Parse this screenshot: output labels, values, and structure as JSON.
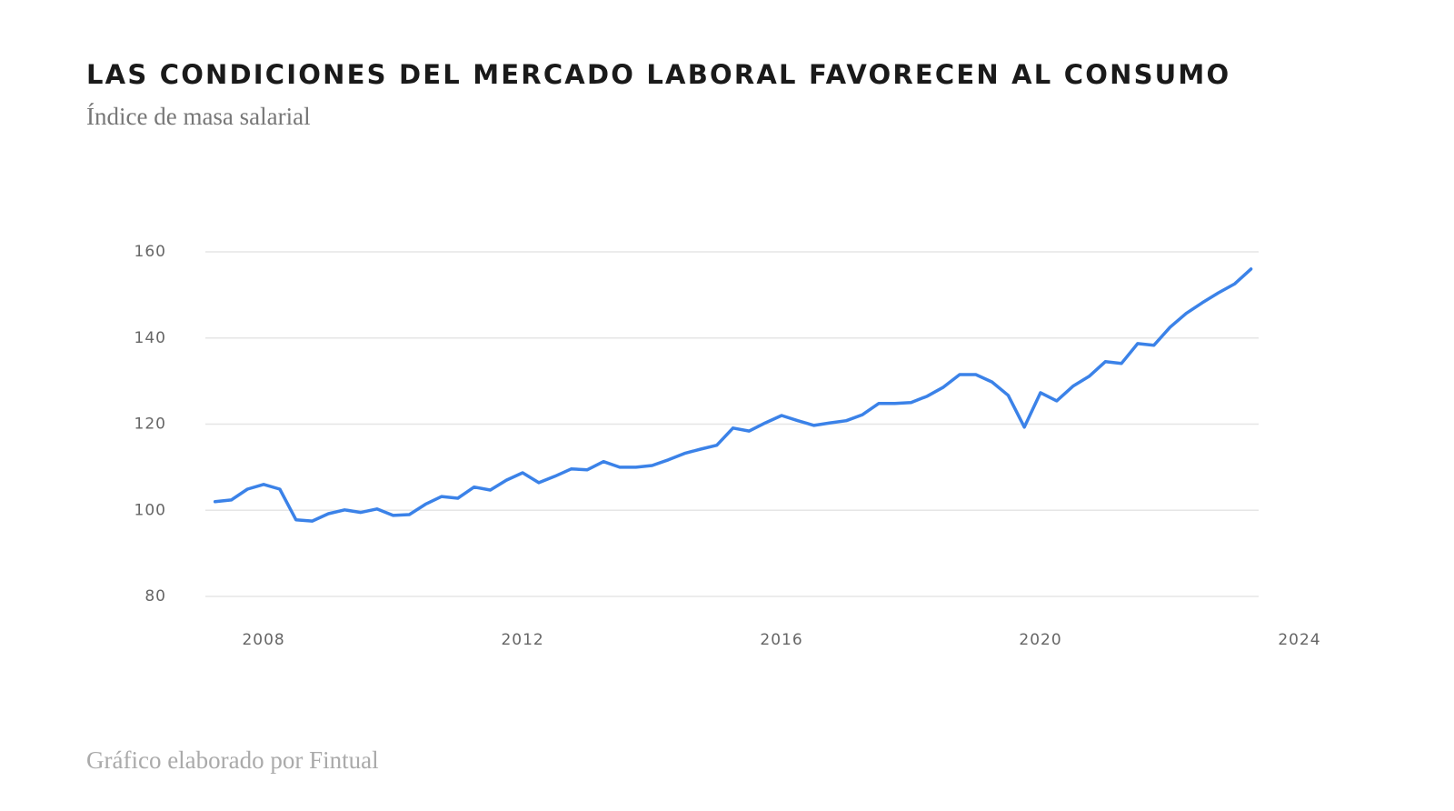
{
  "chart_data": {
    "type": "line",
    "title": "LAS CONDICIONES DEL MERCADO LABORAL FAVORECEN AL CONSUMO",
    "subtitle": "Índice de masa salarial",
    "footer": "Gráfico elaborado por Fintual",
    "x": [
      2007.25,
      2007.5,
      2007.75,
      2008,
      2008.25,
      2008.5,
      2008.75,
      2009,
      2009.25,
      2009.5,
      2009.75,
      2010,
      2010.25,
      2010.5,
      2010.75,
      2011,
      2011.25,
      2011.5,
      2011.75,
      2012,
      2012.25,
      2012.5,
      2012.75,
      2013,
      2013.25,
      2013.5,
      2013.75,
      2014,
      2014.25,
      2014.5,
      2014.75,
      2015,
      2015.25,
      2015.5,
      2015.75,
      2016,
      2016.25,
      2016.5,
      2016.75,
      2017,
      2017.25,
      2017.5,
      2017.75,
      2018,
      2018.25,
      2018.5,
      2018.75,
      2019,
      2019.25,
      2019.5,
      2019.75,
      2020,
      2020.25,
      2020.5,
      2020.75,
      2021,
      2021.25,
      2021.5,
      2021.75,
      2022,
      2022.25,
      2022.5,
      2022.75,
      2023,
      2023.25
    ],
    "series": [
      {
        "name": "Índice de masa salarial",
        "color": "#3b82e8",
        "values": [
          102,
          102.4,
          104.9,
          106,
          104.9,
          97.8,
          97.5,
          99.2,
          100.1,
          99.5,
          100.3,
          98.8,
          99,
          101.4,
          103.2,
          102.8,
          105.4,
          104.7,
          107,
          108.7,
          106.4,
          107.9,
          109.6,
          109.4,
          111.3,
          110,
          110,
          110.4,
          111.7,
          113.2,
          114.2,
          115.1,
          119.1,
          118.4,
          120.3,
          122,
          120.8,
          119.7,
          120.3,
          120.8,
          122.2,
          124.8,
          124.8,
          125,
          126.5,
          128.6,
          131.5,
          131.5,
          129.8,
          126.7,
          119.3,
          127.3,
          125.4,
          128.8,
          131.1,
          134.5,
          134.1,
          138.7,
          138.3,
          142.5,
          145.7,
          148.2,
          150.5,
          152.6,
          156
        ]
      }
    ],
    "xlim": [
      2007.1,
      2024
    ],
    "xticks": [
      2008,
      2012,
      2016,
      2020,
      2024
    ],
    "ylim": [
      80,
      160
    ],
    "yticks": [
      80,
      100,
      120,
      140,
      160
    ],
    "grid": true
  }
}
